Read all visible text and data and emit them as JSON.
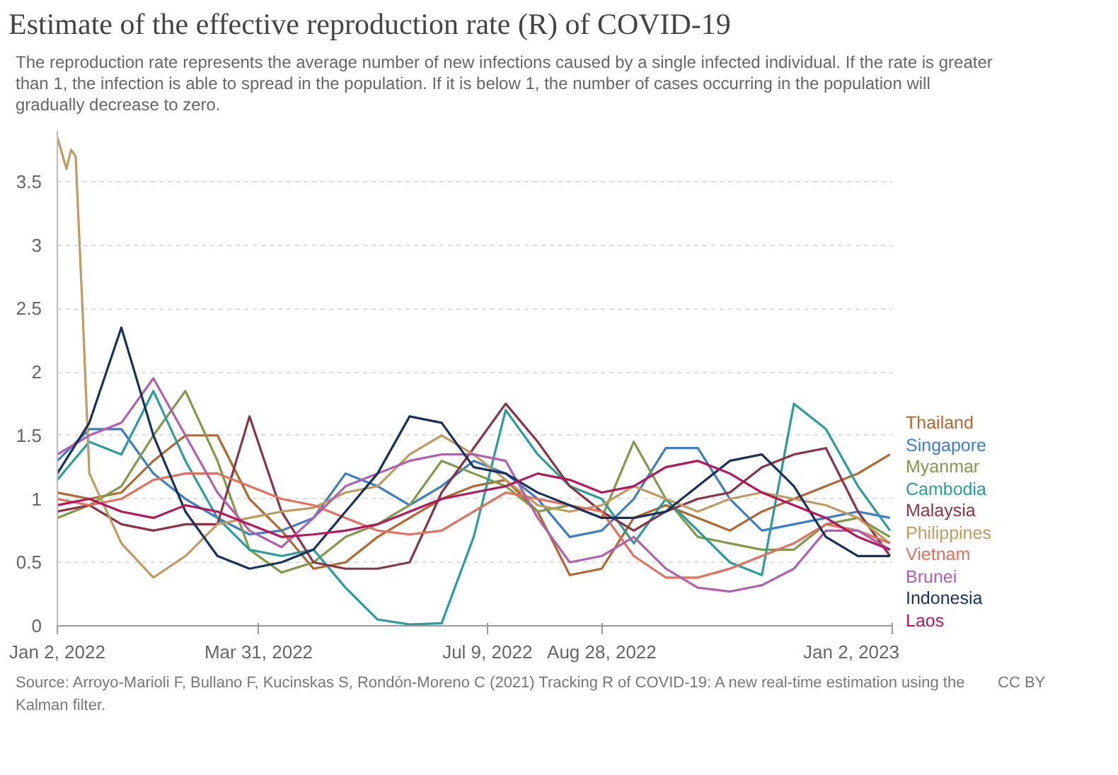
{
  "chart_data": {
    "type": "line",
    "title": "Estimate of the effective reproduction rate (R) of COVID-19",
    "subtitle": "The reproduction rate represents the average number of new infections caused by a single infected individual. If the rate is greater than 1, the infection is able to spread in the population. If it is below 1, the number of cases occurring in the population will gradually decrease to zero.",
    "annotations": [
      "Source: Arroyo-Marioli F, Bullano F, Kucinskas S, Rondón-Moreno C (2021) Tracking R of COVID-19: A new real-time estimation using the Kalman filter.",
      "CC BY"
    ],
    "x": [
      "2022-01-02",
      "2022-01-16",
      "2022-01-30",
      "2022-02-13",
      "2022-02-27",
      "2022-03-13",
      "2022-03-27",
      "2022-04-10",
      "2022-04-24",
      "2022-05-08",
      "2022-05-22",
      "2022-06-05",
      "2022-06-19",
      "2022-07-03",
      "2022-07-17",
      "2022-07-31",
      "2022-08-14",
      "2022-08-28",
      "2022-09-11",
      "2022-09-25",
      "2022-10-09",
      "2022-10-23",
      "2022-11-06",
      "2022-11-20",
      "2022-12-04",
      "2022-12-18",
      "2023-01-01"
    ],
    "xlim": [
      "2022-01-02",
      "2023-01-02"
    ],
    "xticks": [
      {
        "value": "2022-01-02",
        "label": "Jan 2, 2022"
      },
      {
        "value": "2022-03-31",
        "label": "Mar 31, 2022"
      },
      {
        "value": "2022-07-09",
        "label": "Jul 9, 2022"
      },
      {
        "value": "2022-08-28",
        "label": "Aug 28, 2022"
      },
      {
        "value": "2023-01-02",
        "label": "Jan 2, 2023"
      }
    ],
    "ylim": [
      0,
      3.9
    ],
    "yticks": [
      0,
      0.5,
      1,
      1.5,
      2,
      2.5,
      3,
      3.5
    ],
    "grid": "y",
    "series": [
      {
        "name": "Thailand",
        "color": "#b5662e",
        "values": [
          1.05,
          1.0,
          1.05,
          1.3,
          1.5,
          1.5,
          1.0,
          0.75,
          0.45,
          0.5,
          0.7,
          0.85,
          1.0,
          1.1,
          1.15,
          0.9,
          0.4,
          0.45,
          0.85,
          0.95,
          0.85,
          0.75,
          0.9,
          1.0,
          1.1,
          1.2,
          1.35
        ]
      },
      {
        "name": "Singapore",
        "color": "#3b7dc8",
        "values": [
          1.3,
          1.55,
          1.55,
          1.2,
          1.0,
          0.85,
          0.72,
          0.75,
          0.85,
          1.2,
          1.1,
          0.95,
          1.1,
          1.3,
          1.2,
          1.0,
          0.7,
          0.75,
          1.0,
          1.4,
          1.4,
          1.0,
          0.75,
          0.8,
          0.85,
          0.9,
          0.85
        ]
      },
      {
        "name": "Myanmar",
        "color": "#7f9a48",
        "values": [
          0.85,
          0.95,
          1.1,
          1.5,
          1.85,
          1.3,
          0.6,
          0.42,
          0.5,
          0.7,
          0.8,
          0.95,
          1.3,
          1.2,
          1.1,
          0.9,
          0.95,
          0.85,
          1.45,
          1.0,
          0.7,
          0.65,
          0.6,
          0.6,
          0.8,
          0.85,
          0.7
        ]
      },
      {
        "name": "Cambodia",
        "color": "#2a9d9a",
        "values": [
          1.15,
          1.45,
          1.35,
          1.85,
          1.3,
          0.85,
          0.6,
          0.55,
          0.6,
          0.3,
          0.05,
          0.01,
          0.02,
          0.7,
          1.7,
          1.35,
          1.1,
          1.0,
          0.65,
          1.0,
          0.75,
          0.5,
          0.4,
          1.75,
          1.55,
          1.1,
          0.75
        ]
      },
      {
        "name": "Malaysia",
        "color": "#8a3344",
        "values": [
          0.9,
          0.95,
          0.8,
          0.75,
          0.8,
          0.8,
          1.65,
          0.9,
          0.5,
          0.45,
          0.45,
          0.5,
          1.05,
          1.4,
          1.75,
          1.45,
          1.1,
          0.9,
          0.75,
          0.9,
          1.0,
          1.05,
          1.25,
          1.35,
          1.4,
          0.9,
          0.55
        ]
      },
      {
        "name": "Philippines",
        "color": "#c09a5e",
        "x": [
          "2022-01-02",
          "2022-01-06",
          "2022-01-08",
          "2022-01-10",
          "2022-01-13",
          "2022-01-16",
          "2022-01-30",
          "2022-02-13",
          "2022-02-27",
          "2022-03-13",
          "2022-03-27",
          "2022-04-10",
          "2022-04-24",
          "2022-05-08",
          "2022-05-22",
          "2022-06-05",
          "2022-06-19",
          "2022-07-03",
          "2022-07-17",
          "2022-07-31",
          "2022-08-14",
          "2022-08-28",
          "2022-09-11",
          "2022-09-25",
          "2022-10-09",
          "2022-10-23",
          "2022-11-06",
          "2022-11-20",
          "2022-12-04",
          "2022-12-18",
          "2023-01-01"
        ],
        "values": [
          3.85,
          3.6,
          3.75,
          3.7,
          2.5,
          1.2,
          0.65,
          0.38,
          0.55,
          0.8,
          0.85,
          0.9,
          0.93,
          1.05,
          1.1,
          1.35,
          1.5,
          1.35,
          1.15,
          0.95,
          0.9,
          0.95,
          1.1,
          1.0,
          0.9,
          1.0,
          1.05,
          1.0,
          0.95,
          0.85,
          0.65
        ]
      },
      {
        "name": "Vietnam",
        "color": "#e3705c",
        "values": [
          1.0,
          0.95,
          1.0,
          1.15,
          1.2,
          1.2,
          1.1,
          1.0,
          0.95,
          0.85,
          0.75,
          0.72,
          0.75,
          0.9,
          1.05,
          1.0,
          0.95,
          0.9,
          0.55,
          0.38,
          0.38,
          0.45,
          0.55,
          0.65,
          0.8,
          0.75,
          0.65
        ]
      },
      {
        "name": "Brunei",
        "color": "#b25fb0",
        "values": [
          1.35,
          1.5,
          1.6,
          1.95,
          1.5,
          1.05,
          0.75,
          0.62,
          0.85,
          1.1,
          1.2,
          1.3,
          1.35,
          1.35,
          1.3,
          0.85,
          0.5,
          0.55,
          0.7,
          0.45,
          0.3,
          0.27,
          0.32,
          0.45,
          0.75,
          0.75,
          0.6
        ]
      },
      {
        "name": "Indonesia",
        "color": "#17305e",
        "values": [
          1.2,
          1.6,
          2.35,
          1.5,
          0.9,
          0.55,
          0.45,
          0.5,
          0.6,
          0.9,
          1.2,
          1.65,
          1.6,
          1.25,
          1.2,
          1.05,
          0.95,
          0.85,
          0.85,
          0.9,
          1.1,
          1.3,
          1.35,
          1.1,
          0.7,
          0.55,
          0.55
        ]
      },
      {
        "name": "Laos",
        "color": "#b5175e",
        "values": [
          0.95,
          1.0,
          0.9,
          0.85,
          0.95,
          0.9,
          0.8,
          0.7,
          0.72,
          0.75,
          0.8,
          0.9,
          1.0,
          1.05,
          1.1,
          1.2,
          1.15,
          1.05,
          1.1,
          1.25,
          1.3,
          1.2,
          1.05,
          0.95,
          0.85,
          0.7,
          0.6
        ]
      }
    ]
  }
}
